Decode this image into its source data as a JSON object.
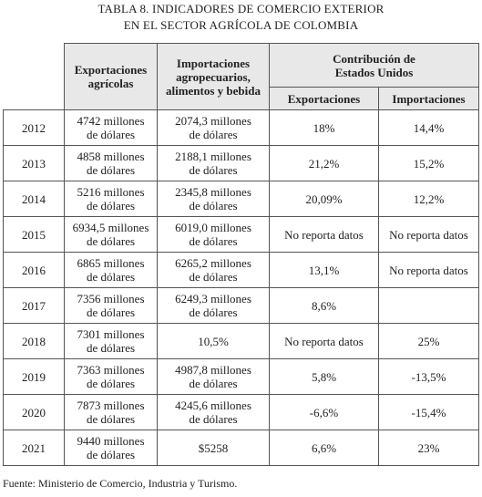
{
  "title": [
    "TABLA 8. INDICADORES DE COMERCIO EXTERIOR",
    "EN EL SECTOR AGRÍCOLA DE COLOMBIA"
  ],
  "table": {
    "headers": [
      "Exportaciones\nagrícolas",
      "Importaciones\nagropecuarios,\nalimentos y bebida",
      "Contribución de\nEstados Unidos"
    ],
    "subheaders": [
      "Exportaciones",
      "Importaciones"
    ],
    "rows": [
      [
        "2012",
        "4742 millones\nde dólares",
        "2074,3 millones\nde dólares",
        "18%",
        "14,4%"
      ],
      [
        "2013",
        "4858 millones\nde dólares",
        "2188,1 millones\nde dólares",
        "21,2%",
        "15,2%"
      ],
      [
        "2014",
        "5216 millones\nde dólares",
        "2345,8 millones\nde dólares",
        "20,09%",
        "12,2%"
      ],
      [
        "2015",
        "6934,5 millones\nde dólares",
        "6019,0 millones\nde dólares",
        "No reporta datos",
        "No reporta datos"
      ],
      [
        "2016",
        "6865 millones\nde dólares",
        "6265,2 millones\nde dólares",
        "13,1%",
        "No reporta datos"
      ],
      [
        "2017",
        "7356 millones\nde dólares",
        "6249,3 millones\nde dólares",
        "8,6%",
        null
      ],
      [
        "2018",
        "7301 millones\nde dólares",
        "10,5%",
        "No reporta datos",
        "25%"
      ],
      [
        "2019",
        "7363 millones\nde dólares",
        "4987,8 millones\nde dólares",
        "5,8%",
        "-13,5%"
      ],
      [
        "2020",
        "7873 millones\nde dólares",
        "4245,6 millones\nde dólares",
        "-6,6%",
        "-15,4%"
      ],
      [
        "2021",
        "9440 millones\nde dólares",
        "$5258",
        "6,6%",
        "23%"
      ]
    ]
  },
  "source": "Fuente: Ministerio de Comercio, Industria y Turismo."
}
